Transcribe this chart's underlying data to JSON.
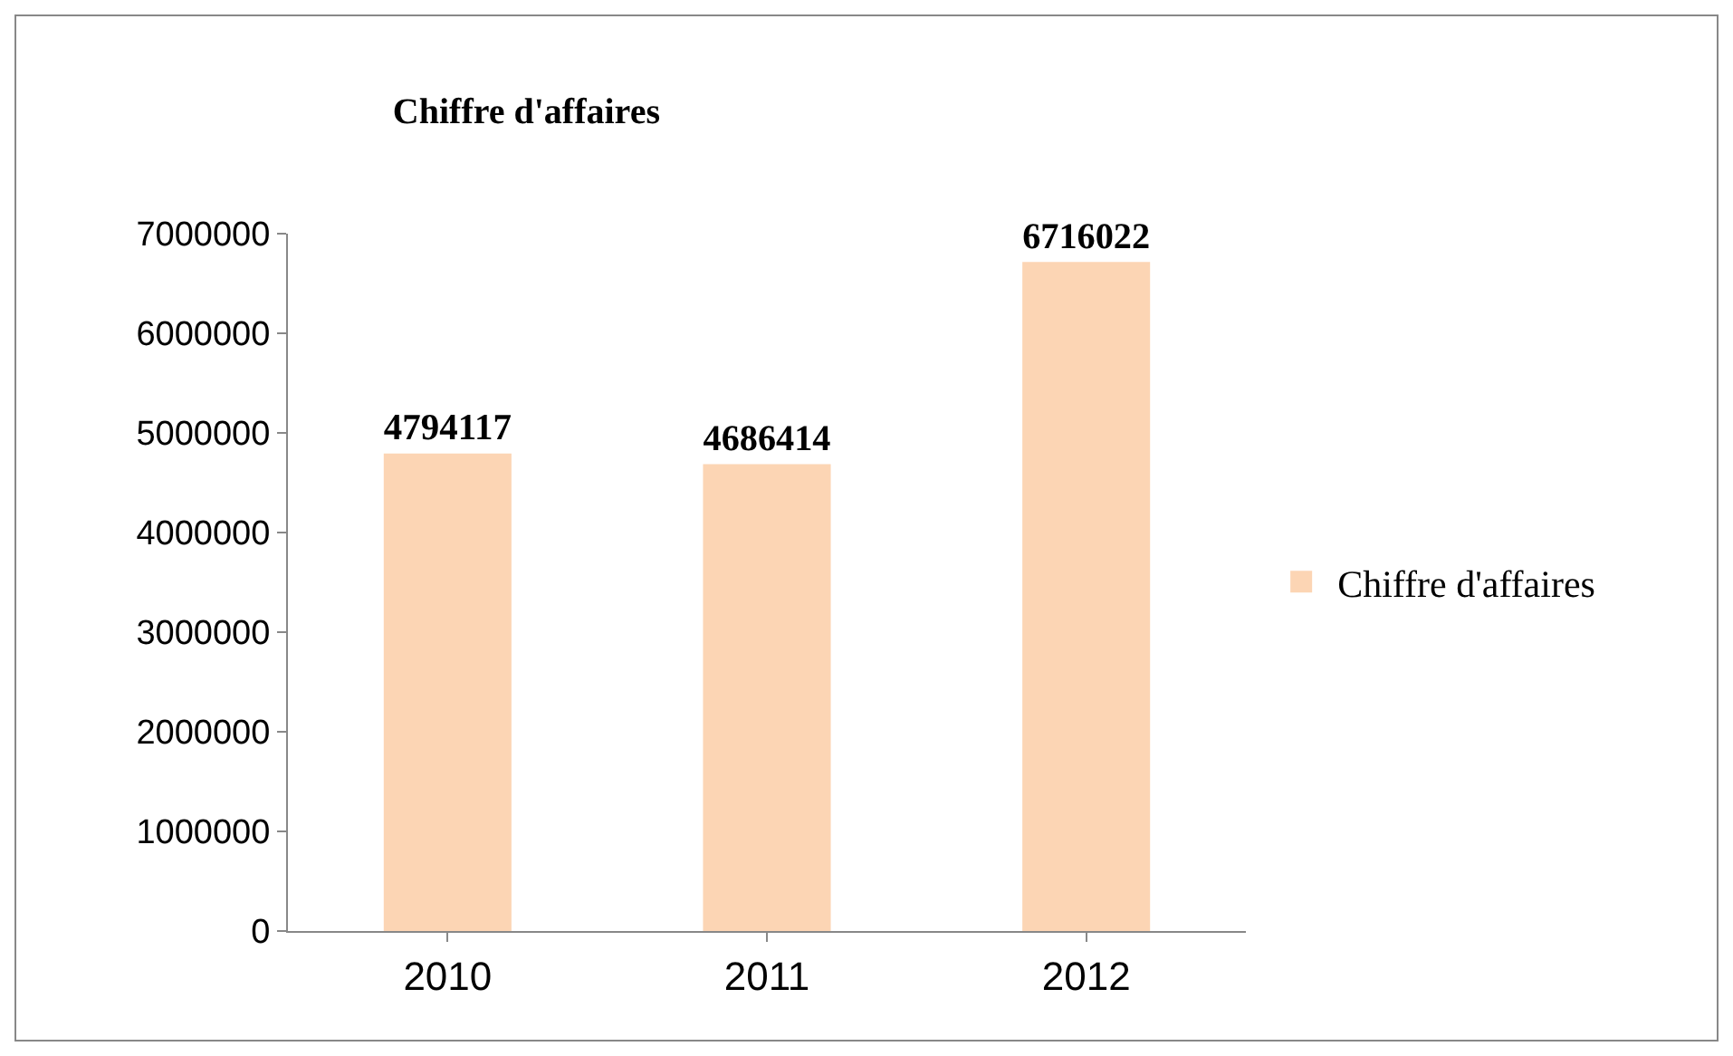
{
  "chart_data": {
    "type": "bar",
    "title": "Chiffre d'affaires",
    "categories": [
      "2010",
      "2011",
      "2012"
    ],
    "series": [
      {
        "name": "Chiffre d'affaires",
        "color": "#fcd5b4",
        "values": [
          4794117,
          4686414,
          6716022
        ]
      }
    ],
    "ylim": [
      0,
      7000000
    ],
    "yticks": [
      0,
      1000000,
      2000000,
      3000000,
      4000000,
      5000000,
      6000000,
      7000000
    ],
    "data_labels": true,
    "grid": false,
    "legend": "right"
  }
}
